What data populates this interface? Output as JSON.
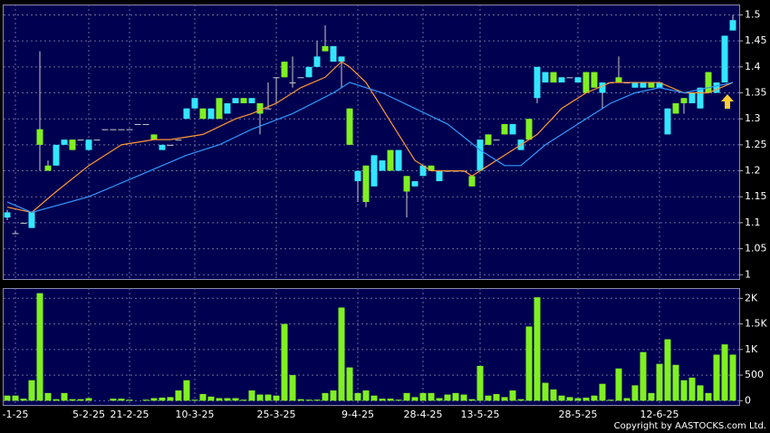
{
  "chart_data": {
    "type": "candlestick",
    "categories": [
      null,
      "-1-25",
      null,
      null,
      null,
      null,
      null,
      null,
      null,
      null,
      "5-2-25",
      null,
      null,
      null,
      null,
      "21-2-25",
      null,
      null,
      null,
      null,
      null,
      null,
      null,
      "10-3-25",
      null,
      null,
      null,
      null,
      null,
      null,
      null,
      null,
      null,
      "25-3-25",
      null,
      null,
      null,
      null,
      null,
      null,
      null,
      null,
      null,
      "9-4-25",
      null,
      null,
      null,
      null,
      null,
      null,
      null,
      "28-4-25",
      null,
      null,
      null,
      null,
      null,
      null,
      "13-5-25",
      null,
      null,
      null,
      null,
      null,
      null,
      null,
      null,
      null,
      null,
      null,
      "28-5-25",
      null,
      null,
      null,
      null,
      null,
      null,
      null,
      null,
      null,
      "12-6-25",
      null,
      null,
      null,
      null,
      null,
      null,
      null,
      null,
      null
    ],
    "open": [
      1.11,
      1.08,
      1.1,
      1.09,
      1.28,
      1.21,
      1.21,
      1.25,
      1.26,
      1.26,
      1.24,
      1.26,
      1.28,
      1.28,
      1.28,
      1.28,
      1.29,
      1.29,
      1.27,
      1.24,
      1.25,
      1.26,
      1.3,
      1.32,
      1.32,
      1.3,
      1.34,
      1.31,
      1.33,
      1.34,
      1.33,
      1.33,
      1.32,
      1.38,
      1.41,
      1.37,
      1.38,
      1.38,
      1.4,
      1.44,
      1.41,
      1.41,
      1.32,
      1.18,
      1.21,
      1.17,
      1.2,
      1.24,
      1.2,
      1.19,
      1.17,
      1.19,
      1.21,
      1.18,
      1.2,
      1.2,
      1.2,
      1.19,
      1.2,
      1.27,
      1.26,
      1.29,
      1.27,
      1.24,
      1.3,
      1.34,
      1.37,
      1.39,
      1.37,
      1.38,
      1.37,
      1.39,
      1.39,
      1.35,
      1.37,
      1.38,
      1.37,
      1.36,
      1.36,
      1.37,
      1.36,
      1.27,
      1.33,
      1.34,
      1.33,
      1.32,
      1.39,
      1.35,
      1.37,
      1.47
    ],
    "high": [
      1.125,
      1.085,
      1.1,
      1.12,
      1.43,
      1.22,
      1.25,
      1.26,
      1.26,
      1.26,
      1.26,
      1.26,
      1.28,
      1.28,
      1.28,
      1.28,
      1.29,
      1.29,
      1.27,
      1.25,
      1.25,
      1.26,
      1.32,
      1.34,
      1.32,
      1.32,
      1.34,
      1.33,
      1.34,
      1.34,
      1.34,
      1.33,
      1.37,
      1.38,
      1.41,
      1.42,
      1.38,
      1.4,
      1.45,
      1.48,
      1.44,
      1.42,
      1.32,
      1.2,
      1.21,
      1.23,
      1.22,
      1.24,
      1.24,
      1.19,
      1.18,
      1.21,
      1.21,
      1.2,
      1.2,
      1.2,
      1.2,
      1.19,
      1.26,
      1.27,
      1.26,
      1.29,
      1.29,
      1.26,
      1.3,
      1.4,
      1.39,
      1.39,
      1.38,
      1.38,
      1.38,
      1.39,
      1.39,
      1.37,
      1.37,
      1.42,
      1.37,
      1.37,
      1.37,
      1.37,
      1.37,
      1.32,
      1.33,
      1.34,
      1.35,
      1.36,
      1.39,
      1.37,
      1.46,
      1.5
    ],
    "low": [
      1.105,
      1.08,
      1.1,
      1.09,
      1.2,
      1.2,
      1.21,
      1.25,
      1.24,
      1.26,
      1.24,
      1.26,
      1.28,
      1.28,
      1.28,
      1.28,
      1.29,
      1.29,
      1.26,
      1.24,
      1.25,
      1.26,
      1.3,
      1.32,
      1.3,
      1.3,
      1.3,
      1.31,
      1.33,
      1.33,
      1.33,
      1.27,
      1.32,
      1.33,
      1.38,
      1.36,
      1.38,
      1.38,
      1.4,
      1.43,
      1.41,
      1.36,
      1.25,
      1.14,
      1.13,
      1.17,
      1.2,
      1.2,
      1.2,
      1.11,
      1.17,
      1.19,
      1.2,
      1.18,
      1.2,
      1.2,
      1.2,
      1.17,
      1.2,
      1.25,
      1.26,
      1.27,
      1.27,
      1.24,
      1.26,
      1.33,
      1.37,
      1.37,
      1.37,
      1.38,
      1.37,
      1.35,
      1.36,
      1.32,
      1.37,
      1.37,
      1.37,
      1.36,
      1.36,
      1.36,
      1.36,
      1.27,
      1.31,
      1.31,
      1.33,
      1.32,
      1.35,
      1.35,
      1.37,
      1.47
    ],
    "close": [
      1.12,
      1.08,
      1.1,
      1.12,
      1.25,
      1.2,
      1.25,
      1.26,
      1.24,
      1.26,
      1.26,
      1.26,
      1.28,
      1.28,
      1.28,
      1.28,
      1.29,
      1.29,
      1.26,
      1.25,
      1.25,
      1.26,
      1.32,
      1.34,
      1.3,
      1.32,
      1.3,
      1.33,
      1.34,
      1.33,
      1.34,
      1.31,
      1.32,
      1.38,
      1.38,
      1.37,
      1.38,
      1.4,
      1.42,
      1.43,
      1.44,
      1.42,
      1.25,
      1.2,
      1.14,
      1.23,
      1.22,
      1.2,
      1.24,
      1.16,
      1.18,
      1.21,
      1.2,
      1.2,
      1.2,
      1.2,
      1.2,
      1.17,
      1.26,
      1.25,
      1.26,
      1.27,
      1.29,
      1.26,
      1.26,
      1.4,
      1.39,
      1.37,
      1.38,
      1.38,
      1.38,
      1.35,
      1.36,
      1.37,
      1.37,
      1.37,
      1.37,
      1.37,
      1.37,
      1.36,
      1.37,
      1.32,
      1.31,
      1.33,
      1.35,
      1.36,
      1.35,
      1.37,
      1.46,
      1.49
    ],
    "up_color": "#33e6ff",
    "down_color": "#80f020",
    "ma": [
      {
        "color": "#ff9933",
        "x": [
          0,
          3,
          6,
          10,
          14,
          18,
          20,
          24,
          28,
          30,
          33,
          36,
          39,
          41,
          42,
          44,
          46,
          48,
          50,
          52,
          56,
          57,
          59,
          61,
          63,
          65,
          68,
          71,
          74,
          80,
          83,
          86,
          89
        ],
        "values": [
          1.13,
          1.12,
          1.16,
          1.21,
          1.25,
          1.26,
          1.26,
          1.27,
          1.3,
          1.31,
          1.33,
          1.36,
          1.38,
          1.41,
          1.4,
          1.37,
          1.32,
          1.27,
          1.22,
          1.2,
          1.2,
          1.19,
          1.21,
          1.23,
          1.25,
          1.27,
          1.32,
          1.35,
          1.37,
          1.37,
          1.35,
          1.35,
          1.37
        ]
      },
      {
        "color": "#3399ff",
        "x": [
          0,
          3,
          10,
          16,
          22,
          26,
          30,
          35,
          40,
          42,
          46,
          50,
          54,
          58,
          61,
          63,
          66,
          70,
          74,
          77,
          80,
          83,
          86,
          89
        ],
        "values": [
          1.14,
          1.12,
          1.15,
          1.19,
          1.23,
          1.25,
          1.28,
          1.31,
          1.35,
          1.37,
          1.35,
          1.32,
          1.29,
          1.24,
          1.21,
          1.21,
          1.25,
          1.29,
          1.33,
          1.35,
          1.36,
          1.35,
          1.36,
          1.37
        ]
      }
    ],
    "ylim": [
      0.99,
      1.52
    ],
    "yticks": [
      1,
      1.05,
      1.1,
      1.15,
      1.2,
      1.25,
      1.3,
      1.35,
      1.4,
      1.45,
      1.5
    ],
    "volume": [
      100,
      100,
      40,
      400,
      2100,
      150,
      30,
      150,
      30,
      30,
      50,
      0,
      0,
      40,
      40,
      20,
      0,
      20,
      50,
      60,
      70,
      200,
      400,
      20,
      130,
      80,
      50,
      50,
      50,
      20,
      200,
      120,
      120,
      100,
      1500,
      500,
      30,
      20,
      20,
      150,
      200,
      1820,
      650,
      150,
      200,
      100,
      40,
      40,
      20,
      150,
      70,
      150,
      150,
      50,
      120,
      150,
      120,
      30,
      680,
      100,
      130,
      70,
      200,
      30,
      1450,
      2020,
      350,
      220,
      100,
      70,
      50,
      60,
      100,
      330,
      20,
      630,
      50,
      300,
      950,
      150,
      720,
      1200,
      700,
      400,
      450,
      300,
      150,
      900,
      1100,
      900
    ],
    "volume_color": "#80f020",
    "vlim": [
      -100,
      2200
    ],
    "vticks": [
      0,
      500,
      {
        "value": 1000,
        "label": "1K"
      },
      {
        "value": 1500,
        "label": "1.5K"
      },
      {
        "value": 2000,
        "label": "2K"
      }
    ],
    "copyright": "Copyright by AASTOCKS.com Ltd."
  }
}
